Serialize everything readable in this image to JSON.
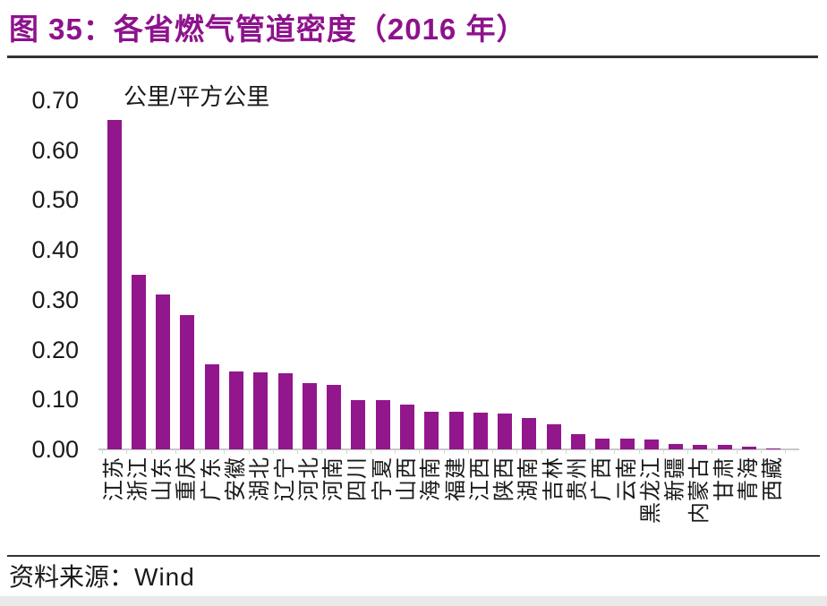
{
  "page": {
    "title": "图 35：各省燃气管道密度（2016 年）",
    "source_label": "资料来源：",
    "source_value": "Wind"
  },
  "colors": {
    "bar_purple": "#92168C",
    "title_purple": "#8E128C",
    "divider_dark": "#333333",
    "axis_line_gray": "#c8c8c8",
    "tick_gray": "#d6d6d6",
    "text_black": "#1a1a1a",
    "bottom_strip_gray": "#e9e9e9"
  },
  "chart_data": {
    "type": "bar",
    "title": "各省燃气管道密度（2016 年）",
    "unit_label": "公里/平方公里",
    "xlabel": "",
    "ylabel": "公里/平方公里",
    "ylim": [
      0,
      0.7
    ],
    "ytick_step": 0.1,
    "ytick_labels": [
      "0.70",
      "0.60",
      "0.50",
      "0.40",
      "0.30",
      "0.20",
      "0.10",
      "0.00"
    ],
    "grid": false,
    "legend_position": "none",
    "bar_color": "#92168C",
    "categories": [
      "江苏",
      "浙江",
      "山东",
      "重庆",
      "广东",
      "安徽",
      "湖北",
      "辽宁",
      "河北",
      "河南",
      "四川",
      "宁夏",
      "山西",
      "海南",
      "福建",
      "江西",
      "陕西",
      "湖南",
      "吉林",
      "贵州",
      "广西",
      "云南",
      "黑龙江",
      "新疆",
      "内蒙古",
      "甘肃",
      "青海",
      "西藏"
    ],
    "values": [
      0.66,
      0.35,
      0.31,
      0.27,
      0.17,
      0.156,
      0.155,
      0.153,
      0.133,
      0.13,
      0.099,
      0.098,
      0.089,
      0.076,
      0.075,
      0.073,
      0.071,
      0.063,
      0.051,
      0.031,
      0.021,
      0.021,
      0.019,
      0.01,
      0.009,
      0.009,
      0.005,
      0.002
    ]
  }
}
